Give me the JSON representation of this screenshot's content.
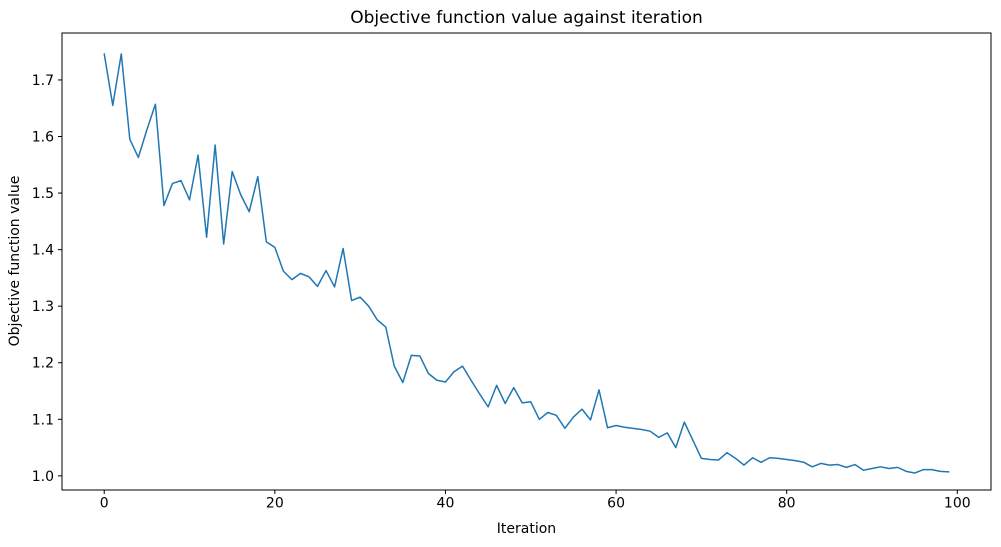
{
  "figure": {
    "title": "Objective function value against iteration",
    "xlabel": "Iteration",
    "ylabel": "Objective function value"
  },
  "chart_data": {
    "type": "line",
    "title": "Objective function value against iteration",
    "xlabel": "Iteration",
    "ylabel": "Objective function value",
    "legend": null,
    "grid": false,
    "line_color": "#1f77b4",
    "axis_color": "#000000",
    "xlim": [
      -4.95,
      103.95
    ],
    "ylim": [
      0.975,
      1.783
    ],
    "xticks": [
      0,
      20,
      40,
      60,
      80,
      100
    ],
    "yticks": [
      1.0,
      1.1,
      1.2,
      1.3,
      1.4,
      1.5,
      1.6,
      1.7
    ],
    "x": [
      0,
      1,
      2,
      3,
      4,
      5,
      6,
      7,
      8,
      9,
      10,
      11,
      12,
      13,
      14,
      15,
      16,
      17,
      18,
      19,
      20,
      21,
      22,
      23,
      24,
      25,
      26,
      27,
      28,
      29,
      30,
      31,
      32,
      33,
      34,
      35,
      36,
      37,
      38,
      39,
      40,
      41,
      42,
      43,
      44,
      45,
      46,
      47,
      48,
      49,
      50,
      51,
      52,
      53,
      54,
      55,
      56,
      57,
      58,
      59,
      60,
      61,
      62,
      63,
      64,
      65,
      66,
      67,
      68,
      69,
      70,
      71,
      72,
      73,
      74,
      75,
      76,
      77,
      78,
      79,
      80,
      81,
      82,
      83,
      84,
      85,
      86,
      87,
      88,
      89,
      90,
      91,
      92,
      93,
      94,
      95,
      96,
      97,
      98,
      99
    ],
    "y": [
      1.746,
      1.655,
      1.746,
      1.595,
      1.563,
      1.612,
      1.657,
      1.478,
      1.517,
      1.522,
      1.488,
      1.567,
      1.422,
      1.585,
      1.41,
      1.538,
      1.497,
      1.467,
      1.529,
      1.414,
      1.404,
      1.362,
      1.347,
      1.358,
      1.352,
      1.335,
      1.363,
      1.334,
      1.402,
      1.31,
      1.316,
      1.3,
      1.276,
      1.263,
      1.194,
      1.165,
      1.213,
      1.212,
      1.181,
      1.169,
      1.166,
      1.184,
      1.194,
      1.169,
      1.145,
      1.122,
      1.16,
      1.128,
      1.156,
      1.129,
      1.131,
      1.1,
      1.112,
      1.107,
      1.084,
      1.104,
      1.118,
      1.099,
      1.152,
      1.085,
      1.089,
      1.086,
      1.084,
      1.082,
      1.079,
      1.068,
      1.076,
      1.05,
      1.095,
      1.063,
      1.031,
      1.029,
      1.028,
      1.041,
      1.031,
      1.019,
      1.032,
      1.024,
      1.032,
      1.031,
      1.029,
      1.027,
      1.024,
      1.016,
      1.022,
      1.019,
      1.02,
      1.015,
      1.02,
      1.01,
      1.013,
      1.016,
      1.013,
      1.015,
      1.008,
      1.005,
      1.011,
      1.011,
      1.008,
      1.007
    ]
  }
}
